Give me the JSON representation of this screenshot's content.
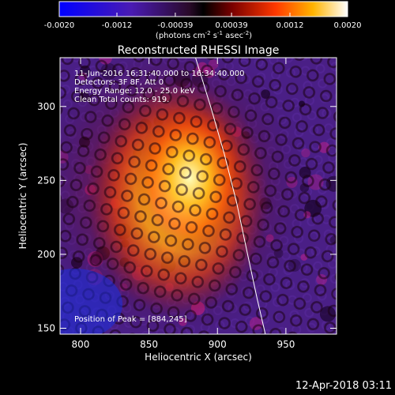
{
  "chart_data": {
    "type": "heatmap",
    "title": "Reconstructed RHESSI Image",
    "xlabel": "Heliocentric X (arcsec)",
    "ylabel": "Heliocentric Y (arcsec)",
    "xlim": [
      785,
      987
    ],
    "ylim": [
      146,
      333
    ],
    "x_ticks": [
      800,
      850,
      900,
      950
    ],
    "y_ticks": [
      150,
      200,
      250,
      300
    ],
    "colorbar": {
      "range": [
        -0.002,
        0.002
      ],
      "tick_values": [
        -0.002,
        -0.0012,
        -0.00039,
        0.00039,
        0.0012,
        0.002
      ],
      "tick_labels": [
        "-0.0020",
        "-0.0012",
        "-0.00039",
        "0.00039",
        "0.0012",
        "0.0020"
      ],
      "unit_prefix": "(photons cm",
      "unit_exp1": "-2",
      "unit_mid": " s",
      "unit_exp2": "-1",
      "unit_mid2": " asec",
      "unit_exp3": "-2",
      "unit_suffix": ")"
    },
    "legend_lines": [
      "11-Jun-2016 16:31:40.000 to 16:34:40.000",
      "Detectors: 3F 8F, Att 0",
      "Energy Range: 12.0 - 25.0 keV",
      "Clean     Total counts: 919."
    ],
    "peak_label": "Position of Peak = [884,245]",
    "peak": {
      "x": 884,
      "y": 245
    },
    "limb_curve": [
      [
        884,
        333
      ],
      [
        895,
        300
      ],
      [
        905,
        268
      ],
      [
        914,
        235
      ],
      [
        922,
        200
      ],
      [
        929,
        170
      ],
      [
        935,
        146
      ]
    ]
  },
  "footer": {
    "timestamp": "12-Apr-2018 03:11"
  }
}
